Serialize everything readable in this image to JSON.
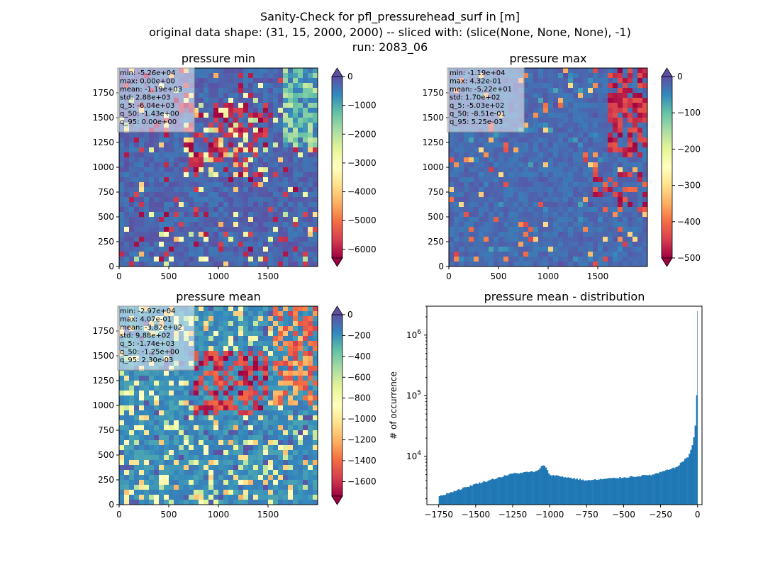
{
  "figure": {
    "title_line1": "Sanity-Check for pfl_pressurehead_surf in [m]",
    "title_line2": "original data shape: (31, 15, 2000, 2000) -- sliced with: (slice(None, None, None), -1)",
    "title_line3": "run: 2083_06"
  },
  "chart_data": [
    {
      "type": "heatmap",
      "title": "pressure min",
      "xlim": [
        0,
        2000
      ],
      "ylim": [
        0,
        2000
      ],
      "x_ticks": [
        0,
        500,
        1000,
        1500
      ],
      "y_ticks": [
        0,
        250,
        500,
        750,
        1000,
        1250,
        1500,
        1750
      ],
      "colormap": "Spectral",
      "colorbar": {
        "min": -6300,
        "max": 0,
        "ticks": [
          0,
          -1000,
          -2000,
          -3000,
          -4000,
          -5000,
          -6000
        ],
        "extend": "both"
      },
      "stats": [
        "min: -5.26e+04",
        "max: 0.00e+00",
        "mean: -1.19e+03",
        "std: 2.88e+03",
        "q_5: -6.04e+03",
        "q_50: -1.43e+00",
        "q_95: 0.00e+00"
      ]
    },
    {
      "type": "heatmap",
      "title": "pressure max",
      "xlim": [
        0,
        2000
      ],
      "ylim": [
        0,
        2000
      ],
      "x_ticks": [
        0,
        500,
        1000,
        1500
      ],
      "y_ticks": [
        0,
        250,
        500,
        750,
        1000,
        1250,
        1500,
        1750
      ],
      "colormap": "Spectral",
      "colorbar": {
        "min": -500,
        "max": 0,
        "ticks": [
          0,
          -100,
          -200,
          -300,
          -400,
          -500
        ],
        "extend": "both"
      },
      "stats": [
        "min: -1.19e+04",
        "max: 4.32e-01",
        "mean: -5.22e+01",
        "std: 1.70e+02",
        "q_5: -5.03e+02",
        "q_50: -8.51e-01",
        "q_95: 5.25e-03"
      ]
    },
    {
      "type": "heatmap",
      "title": "pressure mean",
      "xlim": [
        0,
        2000
      ],
      "ylim": [
        0,
        2000
      ],
      "x_ticks": [
        0,
        500,
        1000,
        1500
      ],
      "y_ticks": [
        0,
        250,
        500,
        750,
        1000,
        1250,
        1500,
        1750
      ],
      "colormap": "Spectral",
      "colorbar": {
        "min": -1740,
        "max": 0,
        "ticks": [
          0,
          -200,
          -400,
          -600,
          -800,
          -1000,
          -1200,
          -1400,
          -1600
        ],
        "extend": "both"
      },
      "stats": [
        "min: -2.97e+04",
        "max: 4.07e-01",
        "mean: -3.82e+02",
        "std: 9.88e+02",
        "q_5: -1.74e+03",
        "q_50: -1.25e+00",
        "q_95: 2.30e-03"
      ]
    },
    {
      "type": "bar",
      "title": "pressure mean - distribution",
      "ylabel": "# of occurrence",
      "yscale": "log",
      "xlim": [
        -1830,
        30
      ],
      "ylim": [
        1600,
        3000000
      ],
      "x_ticks": [
        -1750,
        -1500,
        -1250,
        -1000,
        -750,
        -500,
        -250,
        0
      ],
      "y_ticks": [
        {
          "value": 10000,
          "label": "10^4"
        },
        {
          "value": 100000,
          "label": "10^5"
        },
        {
          "value": 1000000,
          "label": "10^6"
        }
      ],
      "bar_color": "#1f77b4",
      "x": [
        -1750,
        -1500,
        -1250,
        -1080,
        -1040,
        -1000,
        -750,
        -500,
        -300,
        -150,
        -60,
        -30,
        -20,
        -10,
        -5,
        0
      ],
      "values": [
        2200,
        3500,
        5200,
        5700,
        7500,
        5000,
        4000,
        4500,
        5000,
        6500,
        10000,
        17000,
        25000,
        42000,
        100000,
        2500000
      ]
    }
  ]
}
